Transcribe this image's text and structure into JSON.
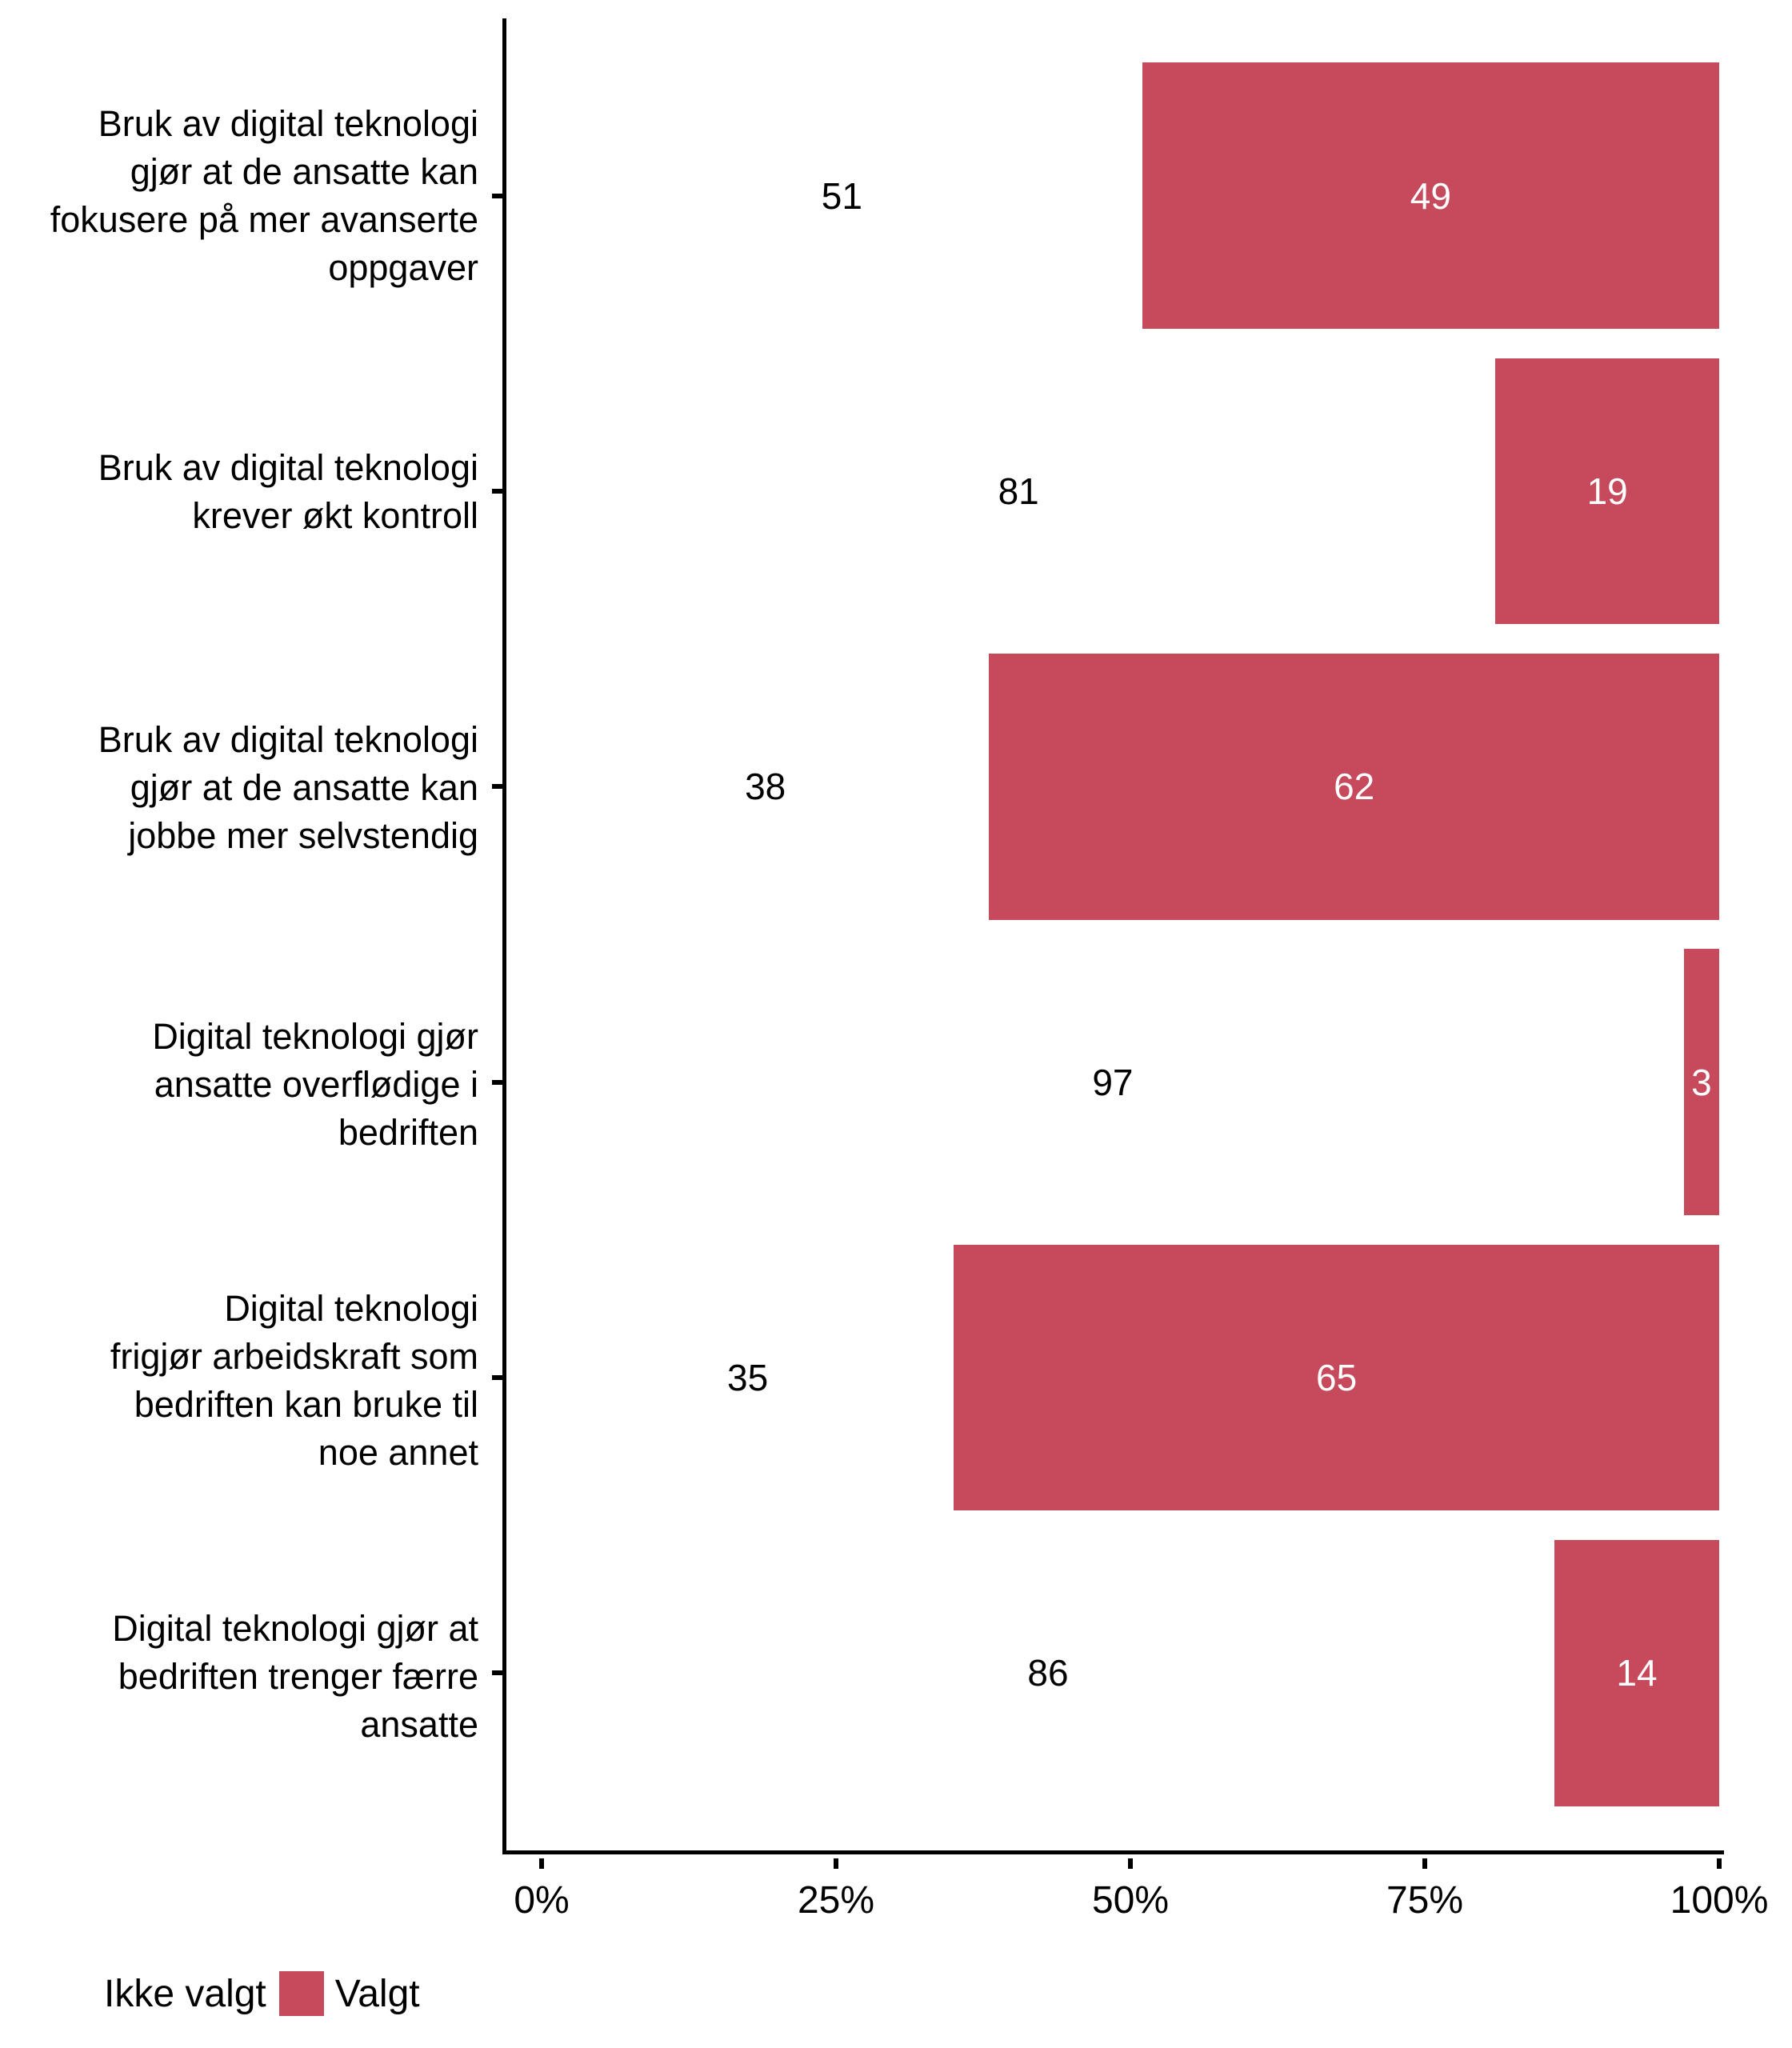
{
  "chart_data": {
    "type": "bar",
    "orientation": "horizontal",
    "stacked": true,
    "stack_total": 100,
    "title": "",
    "xlabel": "",
    "ylabel": "",
    "xlim": [
      0,
      100
    ],
    "grid": false,
    "legend_position": "bottom-left",
    "value_labels": "inside-center",
    "categories": [
      "Bruk av digital teknologi\ngjør at de ansatte kan\nfokusere på mer avanserte\noppgaver",
      "Bruk av digital teknologi\nkrever økt kontroll",
      "Bruk av digital teknologi\ngjør at de ansatte kan\njobbe mer selvstendig",
      "Digital teknologi gjør\nansatte overflødige i\nbedriften",
      "Digital teknologi\nfrigjør arbeidskraft som\nbedriften kan bruke til\nnoe annet",
      "Digital teknologi gjør at\nbedriften trenger færre\nansatte"
    ],
    "series": [
      {
        "name": "Ikke valgt",
        "color": "#FFFFFF",
        "values": [
          51,
          81,
          38,
          97,
          35,
          86
        ]
      },
      {
        "name": "Valgt",
        "color": "#C64A5B",
        "values": [
          49,
          19,
          62,
          3,
          65,
          14
        ]
      }
    ],
    "x_ticks": [
      "0%",
      "25%",
      "50%",
      "75%",
      "100%"
    ]
  },
  "legend": {
    "items": [
      {
        "label": "Ikke valgt",
        "color": "#FFFFFF"
      },
      {
        "label": "Valgt",
        "color": "#C64A5B"
      }
    ]
  },
  "axis": {
    "line_color": "#000000",
    "text_color": "#000000"
  }
}
